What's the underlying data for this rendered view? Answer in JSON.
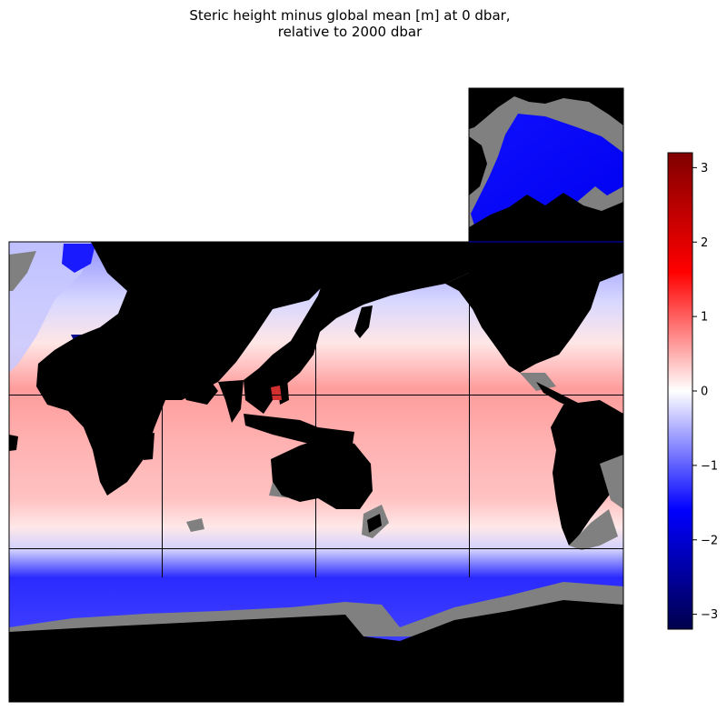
{
  "chart_data": {
    "type": "heatmap",
    "title_line1": "Steric height minus global mean [m] at 0 dbar,",
    "title_line2": "relative to 2000 dbar",
    "colorbar": {
      "colormap": "seismic",
      "vmin": -3.2,
      "vmax": 3.2,
      "ticks": [
        -3,
        -2,
        -1,
        0,
        1,
        2,
        3
      ],
      "tick_labels": [
        "−3",
        "−2",
        "−1",
        "0",
        "1",
        "2",
        "3"
      ]
    },
    "colors": {
      "land": "#000000",
      "missing_shelf": "#808080",
      "ocean_high": "#ff8080",
      "ocean_mid": "#ffffff",
      "ocean_low": "#0000ff"
    },
    "panels": [
      "arctic-face",
      "atlantic-face",
      "indian-face",
      "pacific-face",
      "antarctic-face"
    ],
    "grid_lines": true
  }
}
